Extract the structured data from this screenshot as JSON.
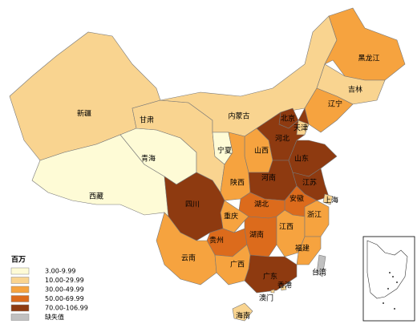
{
  "legend": {
    "title": "百万",
    "items": [
      {
        "label": "3.00-9.99",
        "color": "#fefbd6"
      },
      {
        "label": "10.00-29.99",
        "color": "#f9d490"
      },
      {
        "label": "30.00-49.99",
        "color": "#f6a33f"
      },
      {
        "label": "50.00-69.99",
        "color": "#dc6b1c"
      },
      {
        "label": "70.00-106.99",
        "color": "#8e3a10"
      },
      {
        "label": "缺失值",
        "color": "#c0c0c0"
      }
    ]
  },
  "provinces": [
    {
      "name": "新疆",
      "color": "#f9d490"
    },
    {
      "name": "西藏",
      "color": "#fefbd6"
    },
    {
      "name": "青海",
      "color": "#fefbd6"
    },
    {
      "name": "甘肃",
      "color": "#f9d490"
    },
    {
      "name": "内蒙古",
      "color": "#f9d490"
    },
    {
      "name": "黑龙江",
      "color": "#f6a33f"
    },
    {
      "name": "吉林",
      "color": "#f9d490"
    },
    {
      "name": "辽宁",
      "color": "#f6a33f"
    },
    {
      "name": "北京",
      "color": "#8e3a10"
    },
    {
      "name": "河北",
      "color": "#8e3a10"
    },
    {
      "name": "天津",
      "color": "#f9d490"
    },
    {
      "name": "山西",
      "color": "#f6a33f"
    },
    {
      "name": "宁夏",
      "color": "#fefbd6"
    },
    {
      "name": "陕西",
      "color": "#f6a33f"
    },
    {
      "name": "山东",
      "color": "#8e3a10"
    },
    {
      "name": "河南",
      "color": "#8e3a10"
    },
    {
      "name": "江苏",
      "color": "#8e3a10"
    },
    {
      "name": "上海",
      "color": "#f9d490"
    },
    {
      "name": "安徽",
      "color": "#dc6b1c"
    },
    {
      "name": "湖北",
      "color": "#dc6b1c"
    },
    {
      "name": "重庆",
      "color": "#f6a33f"
    },
    {
      "name": "四川",
      "color": "#8e3a10"
    },
    {
      "name": "贵州",
      "color": "#dc6b1c"
    },
    {
      "name": "云南",
      "color": "#f6a33f"
    },
    {
      "name": "湖南",
      "color": "#dc6b1c"
    },
    {
      "name": "江西",
      "color": "#f6a33f"
    },
    {
      "name": "浙江",
      "color": "#f6a33f"
    },
    {
      "name": "福建",
      "color": "#f6a33f"
    },
    {
      "name": "广东",
      "color": "#8e3a10"
    },
    {
      "name": "广西",
      "color": "#f6a33f"
    },
    {
      "name": "海南",
      "color": "#f9d490"
    },
    {
      "name": "台湾",
      "color": "#c0c0c0"
    },
    {
      "name": "香港",
      "color": "#f9d490"
    },
    {
      "name": "澳门",
      "color": "#f9d490"
    }
  ]
}
